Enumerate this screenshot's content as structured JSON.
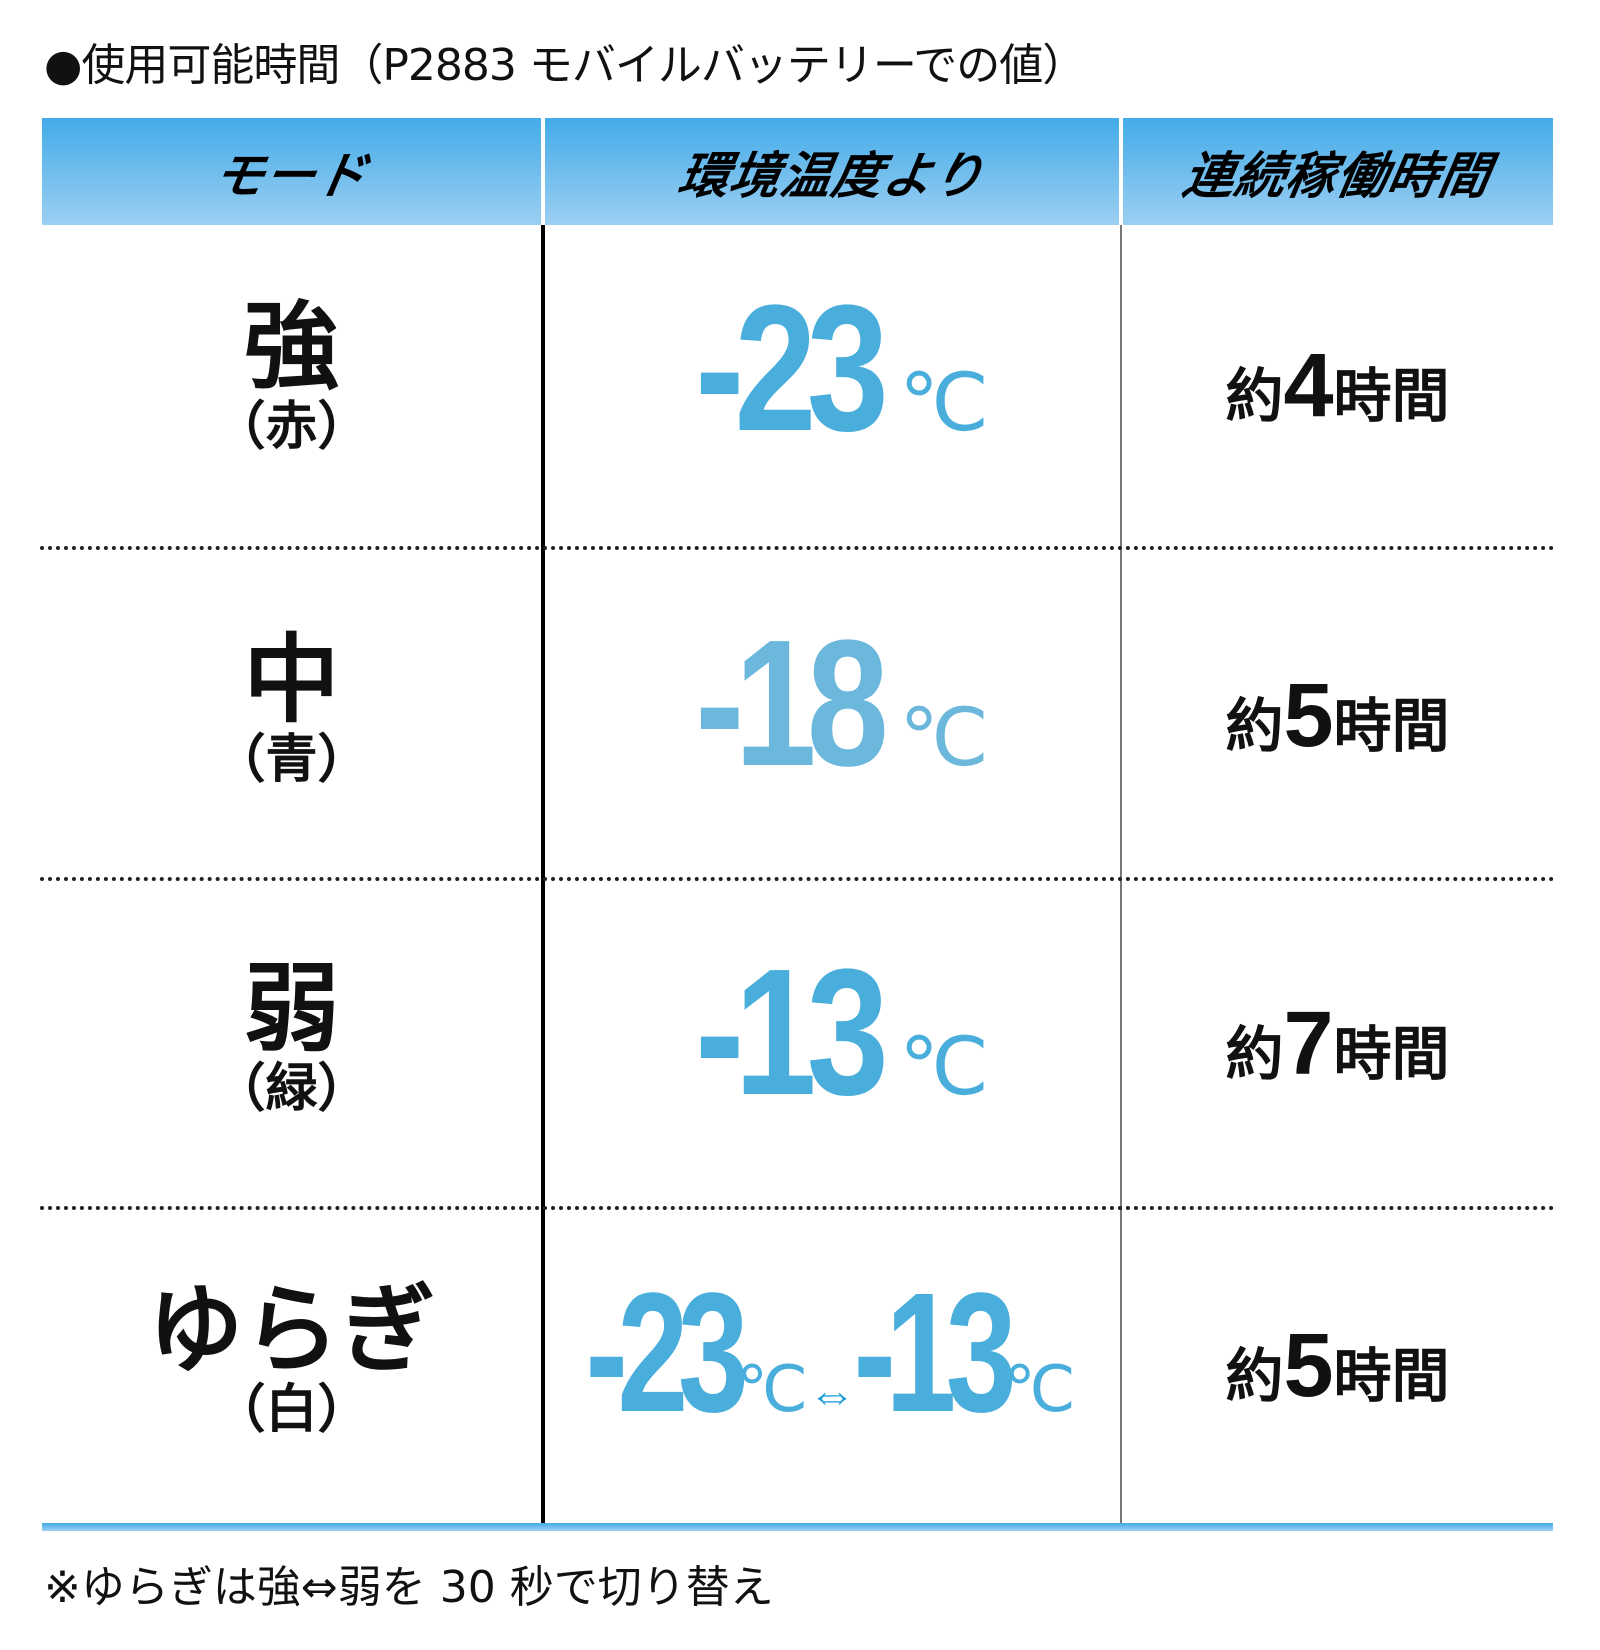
{
  "title": "●使用可能時間（P2883 モバイルバッテリーでの値）",
  "header": {
    "mode": "モード",
    "temperature": "環境温度より",
    "duration": "連続稼働時間"
  },
  "colors": {
    "accent": "#43abe8",
    "temperature": "#4aaedc",
    "temperature_mid": "#6bb8dc",
    "arrow": "#1a9ad6"
  },
  "rows": [
    {
      "mode": "強",
      "color_label": "（赤）",
      "temp": "-23",
      "unit": "℃",
      "duration_prefix": "約",
      "duration_value": "4",
      "duration_suffix": "時間"
    },
    {
      "mode": "中",
      "color_label": "（青）",
      "temp": "-18",
      "unit": "℃",
      "duration_prefix": "約",
      "duration_value": "5",
      "duration_suffix": "時間"
    },
    {
      "mode": "弱",
      "color_label": "（緑）",
      "temp": "-13",
      "unit": "℃",
      "duration_prefix": "約",
      "duration_value": "7",
      "duration_suffix": "時間"
    },
    {
      "mode": "ゆらぎ",
      "color_label": "（白）",
      "temp_from": "-23",
      "temp_to": "-13",
      "unit": "℃",
      "arrow": "⇔",
      "duration_prefix": "約",
      "duration_value": "5",
      "duration_suffix": "時間"
    }
  ],
  "footnote": "※ゆらぎは強⇔弱を 30 秒で切り替え"
}
